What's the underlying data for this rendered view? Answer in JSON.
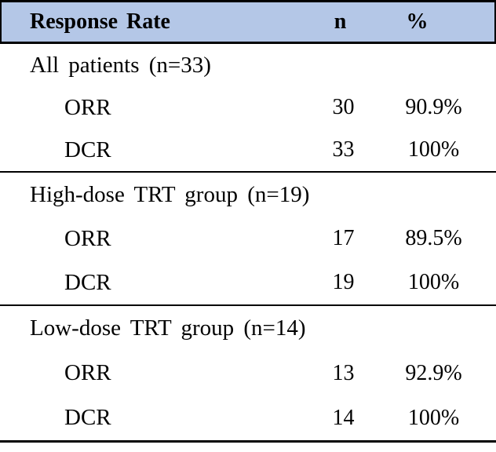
{
  "table": {
    "header": {
      "response_rate": "Response Rate",
      "n": "n",
      "pct": "%"
    },
    "sections": [
      {
        "group": "All patients (n=33)",
        "rows": [
          {
            "label": "ORR",
            "n": "30",
            "pct": "90.9%"
          },
          {
            "label": "DCR",
            "n": "33",
            "pct": "100%"
          }
        ]
      },
      {
        "group": "High-dose TRT group (n=19)",
        "rows": [
          {
            "label": "ORR",
            "n": "17",
            "pct": "89.5%"
          },
          {
            "label": "DCR",
            "n": "19",
            "pct": "100%"
          }
        ]
      },
      {
        "group": "Low-dose TRT group (n=14)",
        "rows": [
          {
            "label": "ORR",
            "n": "13",
            "pct": "92.9%"
          },
          {
            "label": "DCR",
            "n": "14",
            "pct": "100%"
          }
        ]
      }
    ],
    "colors": {
      "header_bg": "#b4c7e7",
      "border": "#000000",
      "text": "#000000"
    }
  }
}
